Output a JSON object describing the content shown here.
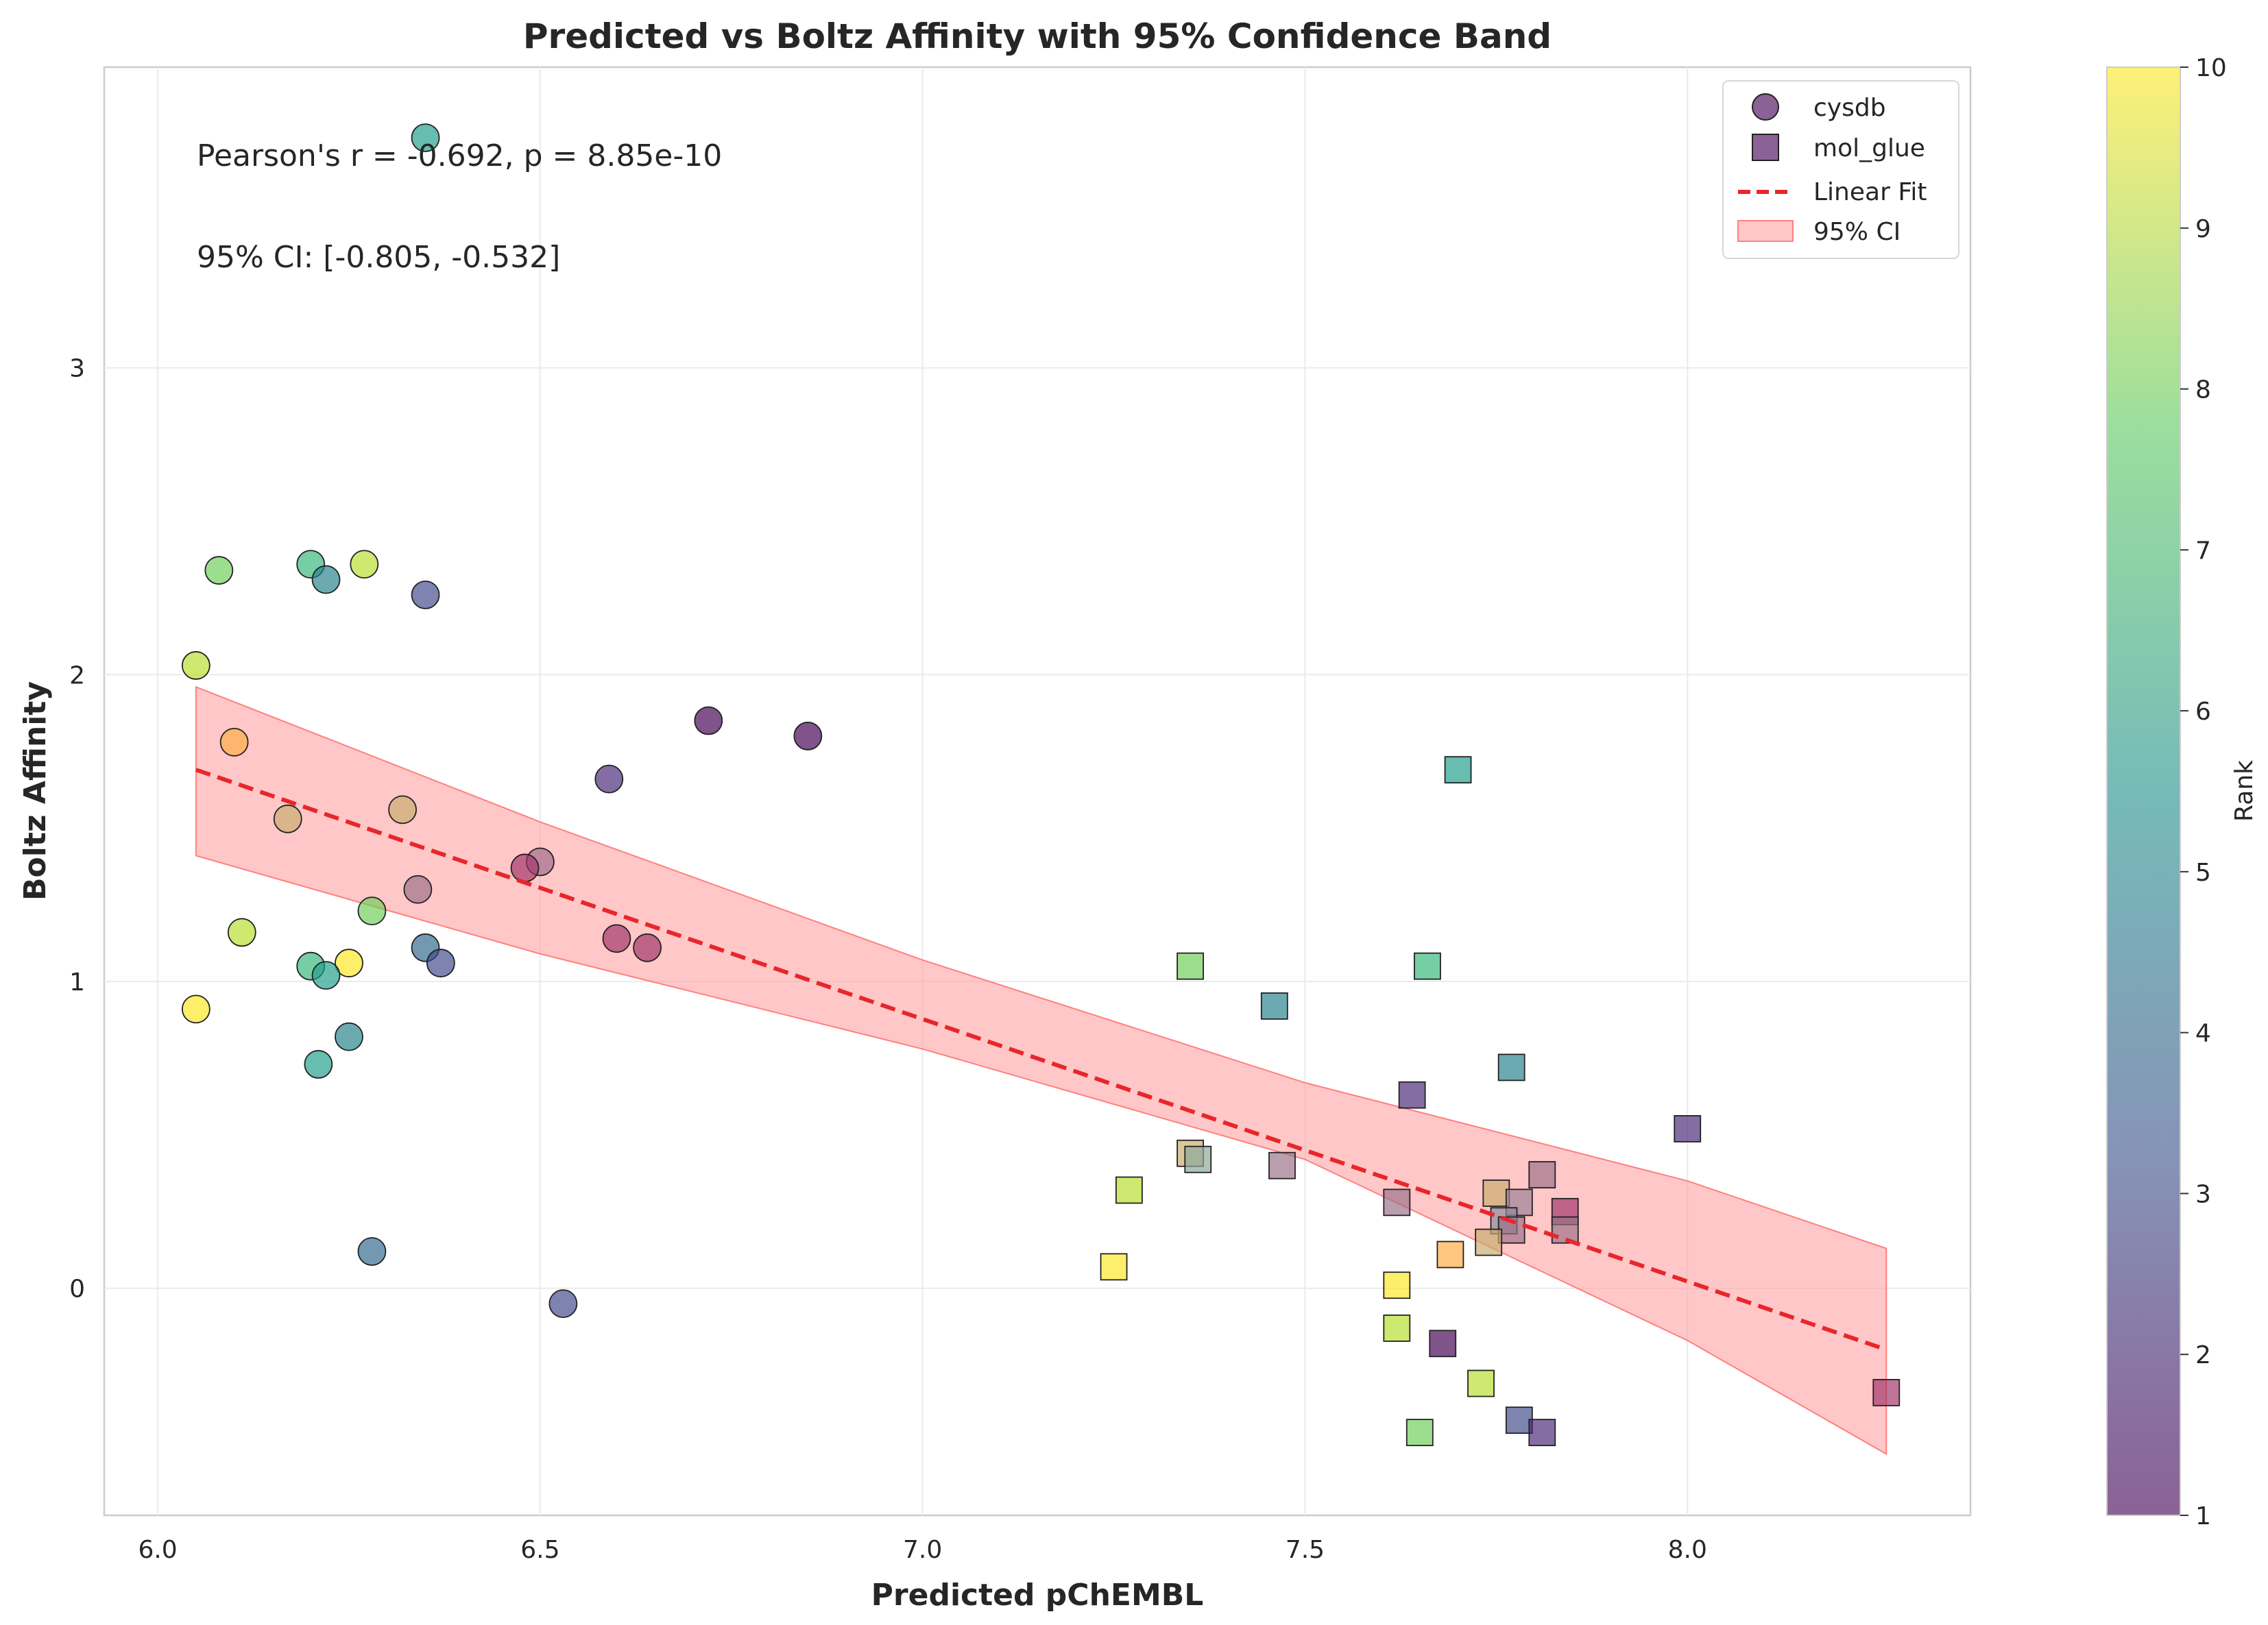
{
  "chart_data": {
    "type": "scatter",
    "title": "Predicted vs Boltz Affinity with 95% Confidence Band",
    "xlabel": "Predicted pChEMBL",
    "ylabel": "Boltz Affinity",
    "xlim": [
      5.93,
      8.37
    ],
    "ylim": [
      -0.74,
      3.98
    ],
    "xticks": [
      6.0,
      6.5,
      7.0,
      7.5,
      8.0
    ],
    "xtick_labels": [
      "6.0",
      "6.5",
      "7.0",
      "7.5",
      "8.0"
    ],
    "yticks": [
      0,
      1,
      2,
      3
    ],
    "ytick_labels": [
      "0",
      "1",
      "2",
      "3"
    ],
    "grid": true,
    "legend_position": "upper-right",
    "colorbar": {
      "label": "Rank",
      "colormap": "viridis",
      "min": 1,
      "max": 10,
      "ticks": [
        1,
        2,
        3,
        4,
        5,
        6,
        7,
        8,
        9,
        10
      ],
      "tick_labels": [
        "1",
        "2",
        "3",
        "4",
        "5",
        "6",
        "7",
        "8",
        "9",
        "10"
      ]
    },
    "annotations": [
      "Pearson's r = -0.692, p = 8.85e-10",
      "95% CI: [-0.805, -0.532]"
    ],
    "legend": [
      {
        "label": "cysdb",
        "kind": "circle"
      },
      {
        "label": "mol_glue",
        "kind": "square"
      },
      {
        "label": "Linear Fit",
        "kind": "dashed-line",
        "color": "#e8262b"
      },
      {
        "label": "95% CI",
        "kind": "band",
        "color": "#ff9999"
      }
    ],
    "fit_line": {
      "x": [
        6.05,
        8.26
      ],
      "y": [
        1.69,
        -0.2
      ],
      "color": "#e8262b"
    },
    "ci_band": {
      "x": [
        6.05,
        6.5,
        7.0,
        7.5,
        8.0,
        8.26
      ],
      "upper": [
        1.96,
        1.52,
        1.07,
        0.67,
        0.35,
        0.13
      ],
      "lower": [
        1.41,
        1.09,
        0.78,
        0.42,
        -0.17,
        -0.54
      ],
      "color": "#ff9999"
    },
    "series": [
      {
        "name": "cysdb",
        "marker": "circle",
        "points": [
          {
            "x": 6.35,
            "y": 3.75,
            "rank": 6
          },
          {
            "x": 6.08,
            "y": 2.34,
            "rank": 8
          },
          {
            "x": 6.2,
            "y": 2.36,
            "rank": 7
          },
          {
            "x": 6.27,
            "y": 2.36,
            "rank": 9
          },
          {
            "x": 6.22,
            "y": 2.31,
            "rank": 5
          },
          {
            "x": 6.35,
            "y": 2.26,
            "rank": 3
          },
          {
            "x": 6.05,
            "y": 2.03,
            "rank": 9
          },
          {
            "x": 6.72,
            "y": 1.85,
            "rank": 1
          },
          {
            "x": 6.85,
            "y": 1.8,
            "rank": 1
          },
          {
            "x": 6.1,
            "y": 1.78,
            "rank": 10,
            "color": "#ffad42"
          },
          {
            "x": 6.59,
            "y": 1.66,
            "rank": 2
          },
          {
            "x": 6.32,
            "y": 1.56,
            "rank": 10,
            "color": "#c9ab6f"
          },
          {
            "x": 6.17,
            "y": 1.53,
            "rank": 10,
            "color": "#c9ab6f"
          },
          {
            "x": 6.5,
            "y": 1.39,
            "rank": 1,
            "color": "#a06a8a"
          },
          {
            "x": 6.48,
            "y": 1.37,
            "rank": 1,
            "color": "#a0336a"
          },
          {
            "x": 6.34,
            "y": 1.3,
            "rank": 1,
            "color": "#9a7088"
          },
          {
            "x": 6.28,
            "y": 1.23,
            "rank": 8
          },
          {
            "x": 6.11,
            "y": 1.16,
            "rank": 9
          },
          {
            "x": 6.6,
            "y": 1.14,
            "rank": 1,
            "color": "#a0336a"
          },
          {
            "x": 6.64,
            "y": 1.11,
            "rank": 1,
            "color": "#a0336a"
          },
          {
            "x": 6.35,
            "y": 1.11,
            "rank": 4
          },
          {
            "x": 6.37,
            "y": 1.06,
            "rank": 3
          },
          {
            "x": 6.25,
            "y": 1.06,
            "rank": 10
          },
          {
            "x": 6.2,
            "y": 1.05,
            "rank": 7
          },
          {
            "x": 6.22,
            "y": 1.02,
            "rank": 6
          },
          {
            "x": 6.05,
            "y": 0.91,
            "rank": 10
          },
          {
            "x": 6.25,
            "y": 0.82,
            "rank": 5
          },
          {
            "x": 6.21,
            "y": 0.73,
            "rank": 6
          },
          {
            "x": 6.28,
            "y": 0.12,
            "rank": 4
          },
          {
            "x": 6.53,
            "y": -0.05,
            "rank": 3
          }
        ]
      },
      {
        "name": "mol_glue",
        "marker": "square",
        "points": [
          {
            "x": 7.7,
            "y": 1.69,
            "rank": 6
          },
          {
            "x": 7.35,
            "y": 1.05,
            "rank": 8
          },
          {
            "x": 7.66,
            "y": 1.05,
            "rank": 7
          },
          {
            "x": 7.46,
            "y": 0.92,
            "rank": 5
          },
          {
            "x": 7.77,
            "y": 0.72,
            "rank": 5
          },
          {
            "x": 7.64,
            "y": 0.63,
            "rank": 2
          },
          {
            "x": 8.0,
            "y": 0.52,
            "rank": 2
          },
          {
            "x": 7.35,
            "y": 0.44,
            "rank": 10,
            "color": "#c9ab6f"
          },
          {
            "x": 7.36,
            "y": 0.42,
            "rank": 6,
            "color": "#8aa89a"
          },
          {
            "x": 7.47,
            "y": 0.4,
            "rank": 1,
            "color": "#9a7088"
          },
          {
            "x": 7.81,
            "y": 0.37,
            "rank": 1,
            "color": "#9a7088"
          },
          {
            "x": 7.27,
            "y": 0.32,
            "rank": 9
          },
          {
            "x": 7.75,
            "y": 0.31,
            "rank": 10,
            "color": "#c9ab6f"
          },
          {
            "x": 7.62,
            "y": 0.28,
            "rank": 1,
            "color": "#9a7088"
          },
          {
            "x": 7.78,
            "y": 0.28,
            "rank": 2,
            "color": "#9a8098"
          },
          {
            "x": 7.84,
            "y": 0.25,
            "rank": 1,
            "color": "#a0336a"
          },
          {
            "x": 7.76,
            "y": 0.22,
            "rank": 2,
            "color": "#8a8a9a"
          },
          {
            "x": 7.84,
            "y": 0.19,
            "rank": 2,
            "color": "#9a7088"
          },
          {
            "x": 7.77,
            "y": 0.19,
            "rank": 1,
            "color": "#9a7088"
          },
          {
            "x": 7.74,
            "y": 0.15,
            "rank": 10,
            "color": "#c9ab6f"
          },
          {
            "x": 7.69,
            "y": 0.11,
            "rank": 10,
            "color": "#ffad42"
          },
          {
            "x": 7.25,
            "y": 0.07,
            "rank": 10
          },
          {
            "x": 7.62,
            "y": 0.01,
            "rank": 10
          },
          {
            "x": 7.62,
            "y": -0.13,
            "rank": 9
          },
          {
            "x": 7.68,
            "y": -0.18,
            "rank": 1
          },
          {
            "x": 7.73,
            "y": -0.31,
            "rank": 9
          },
          {
            "x": 8.26,
            "y": -0.34,
            "rank": 1,
            "color": "#a0336a"
          },
          {
            "x": 7.78,
            "y": -0.43,
            "rank": 3
          },
          {
            "x": 7.65,
            "y": -0.47,
            "rank": 8
          },
          {
            "x": 7.81,
            "y": -0.47,
            "rank": 2
          }
        ]
      }
    ]
  }
}
